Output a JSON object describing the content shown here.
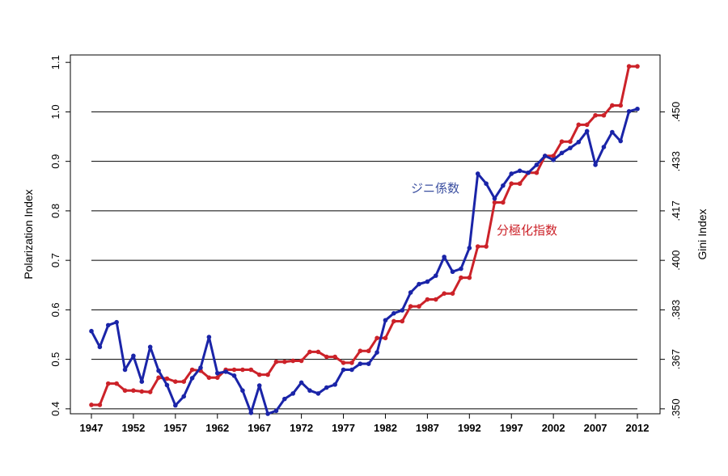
{
  "chart_data": {
    "type": "line",
    "ylabel": "Polarization Index",
    "y2label": "Gini Index",
    "x": [
      1947,
      1948,
      1949,
      1950,
      1951,
      1952,
      1953,
      1954,
      1955,
      1956,
      1957,
      1958,
      1959,
      1960,
      1961,
      1962,
      1963,
      1964,
      1965,
      1966,
      1967,
      1968,
      1969,
      1970,
      1971,
      1972,
      1973,
      1974,
      1975,
      1976,
      1977,
      1978,
      1979,
      1980,
      1981,
      1982,
      1983,
      1984,
      1985,
      1986,
      1987,
      1988,
      1989,
      1990,
      1991,
      1992,
      1993,
      1994,
      1995,
      1996,
      1997,
      1998,
      1999,
      2000,
      2001,
      2002,
      2003,
      2004,
      2005,
      2006,
      2007,
      2008,
      2009,
      2010,
      2011,
      2012
    ],
    "xticks": [
      "1947",
      "1952",
      "1957",
      "1962",
      "1967",
      "1972",
      "1977",
      "1982",
      "1987",
      "1992",
      "1997",
      "2002",
      "2007",
      "2012"
    ],
    "xtick_values": [
      1947,
      1952,
      1957,
      1962,
      1967,
      1972,
      1977,
      1982,
      1987,
      1992,
      1997,
      2002,
      2007,
      2012
    ],
    "ylim": [
      0.39,
      1.115
    ],
    "yticks": [
      "0.4",
      "0.5",
      "0.6",
      "0.7",
      "0.8",
      "0.9",
      "1.0",
      "1.1"
    ],
    "ytick_values": [
      0.4,
      0.5,
      0.6,
      0.7,
      0.8,
      0.9,
      1.0,
      1.1
    ],
    "y2ticks": [
      ".350",
      ".367",
      ".383",
      ".400",
      ".417",
      ".433",
      ".450"
    ],
    "y2tick_values": [
      0.4,
      0.5,
      0.6,
      0.7,
      0.8,
      0.9,
      1.0
    ],
    "gridlines": [
      0.4,
      0.5,
      0.6,
      0.7,
      0.8,
      0.9,
      1.0
    ],
    "series": [
      {
        "name": "分極化指数",
        "color": "#cc2229",
        "values": [
          0.408,
          0.408,
          0.451,
          0.451,
          0.437,
          0.437,
          0.435,
          0.434,
          0.463,
          0.461,
          0.455,
          0.455,
          0.479,
          0.477,
          0.463,
          0.463,
          0.479,
          0.479,
          0.479,
          0.479,
          0.469,
          0.469,
          0.495,
          0.495,
          0.497,
          0.497,
          0.515,
          0.515,
          0.505,
          0.505,
          0.493,
          0.493,
          0.517,
          0.517,
          0.543,
          0.543,
          0.577,
          0.577,
          0.607,
          0.607,
          0.621,
          0.621,
          0.633,
          0.633,
          0.665,
          0.665,
          0.728,
          0.728,
          0.817,
          0.817,
          0.855,
          0.855,
          0.877,
          0.877,
          0.911,
          0.911,
          0.94,
          0.94,
          0.974,
          0.974,
          0.993,
          0.993,
          1.013,
          1.013,
          1.092,
          1.092
        ]
      },
      {
        "name": "ジニ係数",
        "color": "#1a24a8",
        "values": [
          0.557,
          0.525,
          0.569,
          0.575,
          0.479,
          0.507,
          0.455,
          0.525,
          0.477,
          0.448,
          0.407,
          0.425,
          0.462,
          0.483,
          0.545,
          0.472,
          0.475,
          0.467,
          0.437,
          0.392,
          0.447,
          0.39,
          0.396,
          0.42,
          0.431,
          0.453,
          0.437,
          0.431,
          0.443,
          0.449,
          0.479,
          0.479,
          0.491,
          0.491,
          0.514,
          0.579,
          0.593,
          0.599,
          0.635,
          0.652,
          0.657,
          0.669,
          0.707,
          0.677,
          0.683,
          0.725,
          0.875,
          0.855,
          0.825,
          0.851,
          0.875,
          0.881,
          0.877,
          0.893,
          0.911,
          0.903,
          0.917,
          0.927,
          0.939,
          0.961,
          0.893,
          0.929,
          0.959,
          0.941,
          1.001,
          1.006
        ]
      }
    ],
    "annotations": [
      {
        "text": "ジニ係数",
        "series": 1
      },
      {
        "text": "分極化指数",
        "series": 0
      }
    ]
  }
}
